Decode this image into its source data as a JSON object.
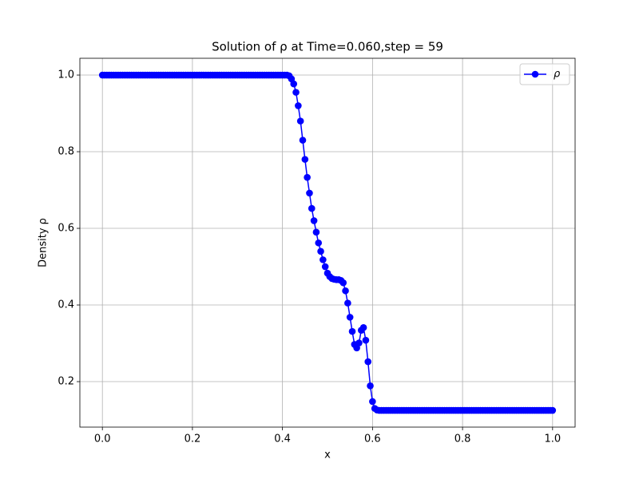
{
  "chart_data": {
    "type": "line",
    "title": "Solution of ρ at Time=0.060,step = 59",
    "x_label": "x",
    "y_label": "Density ρ",
    "x": [
      0,
      0.005,
      0.01,
      0.015,
      0.02,
      0.025,
      0.03,
      0.035,
      0.04,
      0.045,
      0.05,
      0.055,
      0.06,
      0.065,
      0.07,
      0.075,
      0.08,
      0.085,
      0.09,
      0.095,
      0.1,
      0.105,
      0.11,
      0.115,
      0.12,
      0.125,
      0.13,
      0.135,
      0.14,
      0.145,
      0.15,
      0.155,
      0.16,
      0.165,
      0.17,
      0.175,
      0.18,
      0.185,
      0.19,
      0.195,
      0.2,
      0.205,
      0.21,
      0.215,
      0.22,
      0.225,
      0.23,
      0.235,
      0.24,
      0.245,
      0.25,
      0.255,
      0.26,
      0.265,
      0.27,
      0.275,
      0.28,
      0.285,
      0.29,
      0.295,
      0.3,
      0.305,
      0.31,
      0.315,
      0.32,
      0.325,
      0.33,
      0.335,
      0.34,
      0.345,
      0.35,
      0.355,
      0.36,
      0.365,
      0.37,
      0.375,
      0.38,
      0.385,
      0.39,
      0.395,
      0.4,
      0.405,
      0.41,
      0.415,
      0.42,
      0.425,
      0.43,
      0.435,
      0.44,
      0.445,
      0.45,
      0.455,
      0.46,
      0.465,
      0.47,
      0.475,
      0.48,
      0.485,
      0.49,
      0.495,
      0.5,
      0.505,
      0.51,
      0.515,
      0.52,
      0.525,
      0.53,
      0.535,
      0.54,
      0.545,
      0.55,
      0.555,
      0.56,
      0.565,
      0.57,
      0.575,
      0.58,
      0.585,
      0.59,
      0.595,
      0.6,
      0.605,
      0.61,
      0.615,
      0.62,
      0.625,
      0.63,
      0.635,
      0.64,
      0.645,
      0.65,
      0.655,
      0.66,
      0.665,
      0.67,
      0.675,
      0.68,
      0.685,
      0.69,
      0.695,
      0.7,
      0.705,
      0.71,
      0.715,
      0.72,
      0.725,
      0.73,
      0.735,
      0.74,
      0.745,
      0.75,
      0.755,
      0.76,
      0.765,
      0.77,
      0.775,
      0.78,
      0.785,
      0.79,
      0.795,
      0.8,
      0.805,
      0.81,
      0.815,
      0.82,
      0.825,
      0.83,
      0.835,
      0.84,
      0.845,
      0.85,
      0.855,
      0.86,
      0.865,
      0.87,
      0.875,
      0.88,
      0.885,
      0.89,
      0.895,
      0.9,
      0.905,
      0.91,
      0.915,
      0.92,
      0.925,
      0.93,
      0.935,
      0.94,
      0.945,
      0.95,
      0.955,
      0.96,
      0.965,
      0.97,
      0.975,
      0.98,
      0.985,
      0.99,
      0.995,
      1.0
    ],
    "series": [
      {
        "name": "ρ",
        "color": "#0000ff",
        "values": [
          1.0,
          1.0,
          1.0,
          1.0,
          1.0,
          1.0,
          1.0,
          1.0,
          1.0,
          1.0,
          1.0,
          1.0,
          1.0,
          1.0,
          1.0,
          1.0,
          1.0,
          1.0,
          1.0,
          1.0,
          1.0,
          1.0,
          1.0,
          1.0,
          1.0,
          1.0,
          1.0,
          1.0,
          1.0,
          1.0,
          1.0,
          1.0,
          1.0,
          1.0,
          1.0,
          1.0,
          1.0,
          1.0,
          1.0,
          1.0,
          1.0,
          1.0,
          1.0,
          1.0,
          1.0,
          1.0,
          1.0,
          1.0,
          1.0,
          1.0,
          1.0,
          1.0,
          1.0,
          1.0,
          1.0,
          1.0,
          1.0,
          1.0,
          1.0,
          1.0,
          1.0,
          1.0,
          1.0,
          1.0,
          1.0,
          1.0,
          1.0,
          1.0,
          1.0,
          1.0,
          1.0,
          1.0,
          1.0,
          1.0,
          1.0,
          1.0,
          1.0,
          1.0,
          1.0,
          1.0,
          1.0,
          1.0,
          1.0,
          0.998,
          0.99,
          0.977,
          0.955,
          0.92,
          0.88,
          0.83,
          0.78,
          0.733,
          0.692,
          0.652,
          0.62,
          0.59,
          0.562,
          0.54,
          0.518,
          0.5,
          0.483,
          0.474,
          0.469,
          0.467,
          0.466,
          0.466,
          0.464,
          0.458,
          0.437,
          0.405,
          0.368,
          0.331,
          0.297,
          0.288,
          0.301,
          0.334,
          0.341,
          0.308,
          0.252,
          0.189,
          0.148,
          0.13,
          0.126,
          0.125,
          0.125,
          0.125,
          0.125,
          0.125,
          0.125,
          0.125,
          0.125,
          0.125,
          0.125,
          0.125,
          0.125,
          0.125,
          0.125,
          0.125,
          0.125,
          0.125,
          0.125,
          0.125,
          0.125,
          0.125,
          0.125,
          0.125,
          0.125,
          0.125,
          0.125,
          0.125,
          0.125,
          0.125,
          0.125,
          0.125,
          0.125,
          0.125,
          0.125,
          0.125,
          0.125,
          0.125,
          0.125,
          0.125,
          0.125,
          0.125,
          0.125,
          0.125,
          0.125,
          0.125,
          0.125,
          0.125,
          0.125,
          0.125,
          0.125,
          0.125,
          0.125,
          0.125,
          0.125,
          0.125,
          0.125,
          0.125,
          0.125,
          0.125,
          0.125,
          0.125,
          0.125,
          0.125,
          0.125,
          0.125,
          0.125,
          0.125,
          0.125,
          0.125,
          0.125,
          0.125,
          0.125,
          0.125,
          0.125,
          0.125,
          0.125,
          0.125,
          0.125
        ]
      }
    ],
    "xlim": [
      -0.05,
      1.05
    ],
    "ylim": [
      0.0813,
      1.0438
    ],
    "xticks": [
      {
        "value": 0,
        "label": "0.0"
      },
      0.2,
      0.4,
      0.6,
      0.8,
      {
        "value": 1,
        "label": "1.0"
      }
    ],
    "yticks": [
      0.2,
      0.4,
      0.6,
      0.8,
      {
        "value": 1,
        "label": "1.0"
      }
    ],
    "grid": true,
    "legend": "upper right",
    "marker": "circle"
  }
}
